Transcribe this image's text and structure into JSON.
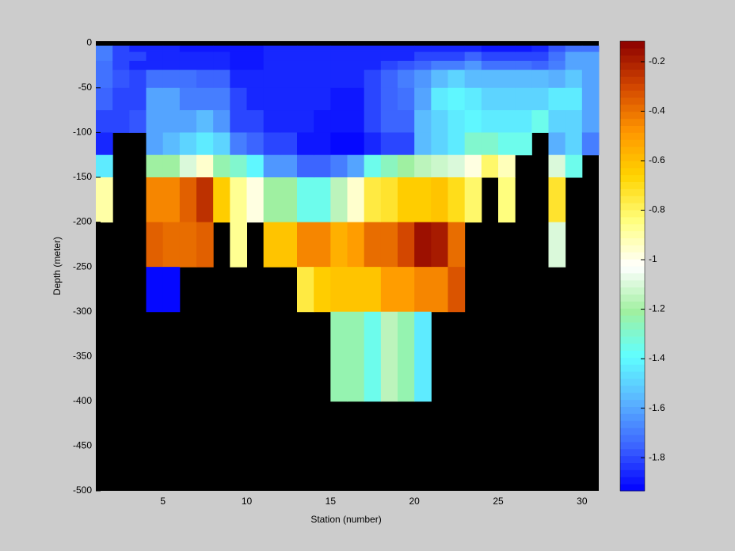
{
  "chart_data": {
    "type": "pcolor",
    "xlabel": "Station (number)",
    "ylabel": "Depth (meter)",
    "xlim": [
      1,
      31
    ],
    "xticks": [
      5,
      10,
      15,
      20,
      25,
      30
    ],
    "ylim": [
      -500,
      2
    ],
    "yticks": [
      0,
      -50,
      -100,
      -150,
      -200,
      -250,
      -300,
      -350,
      -400,
      -450,
      -500
    ],
    "x_edges": [
      1,
      2,
      3,
      4,
      5,
      6,
      7,
      8,
      9,
      10,
      11,
      12,
      13,
      14,
      15,
      16,
      17,
      18,
      19,
      20,
      21,
      22,
      23,
      24,
      25,
      26,
      27,
      28,
      29,
      30,
      31
    ],
    "y_edges": [
      -3,
      -10,
      -20,
      -30,
      -50,
      -75,
      -100,
      -125,
      -150,
      -200,
      -250,
      -300,
      -400
    ],
    "values": [
      [
        -1.7,
        -1.7,
        -1.72,
        -1.72,
        -1.75,
        -1.8,
        -1.85,
        -1.45,
        -0.9,
        null,
        null,
        null
      ],
      [
        -1.8,
        -1.8,
        -1.8,
        -1.78,
        -1.8,
        -1.8,
        null,
        null,
        null,
        null,
        null,
        null
      ],
      [
        -1.85,
        -1.82,
        -1.85,
        -1.8,
        -1.8,
        -1.78,
        null,
        null,
        null,
        null,
        null,
        null
      ],
      [
        -1.85,
        -1.85,
        -1.85,
        -1.72,
        -1.62,
        -1.62,
        -1.62,
        -1.2,
        -0.45,
        -0.35,
        -1.92,
        null
      ],
      [
        -1.85,
        -1.85,
        -1.85,
        -1.72,
        -1.62,
        -1.6,
        -1.55,
        -1.2,
        -0.45,
        -0.4,
        -1.92,
        null
      ],
      [
        -1.88,
        -1.85,
        -1.85,
        -1.72,
        -1.68,
        -1.6,
        -1.5,
        -1.1,
        -0.35,
        -0.4,
        null,
        null
      ],
      [
        -1.88,
        -1.85,
        -1.85,
        -1.75,
        -1.68,
        -1.55,
        -1.45,
        -0.95,
        -0.25,
        -0.35,
        null,
        null
      ],
      [
        -1.88,
        -1.85,
        -1.85,
        -1.75,
        -1.7,
        -1.65,
        -1.5,
        -1.25,
        -0.65,
        null,
        null,
        null
      ],
      [
        -1.88,
        -1.88,
        -1.88,
        -1.85,
        -1.82,
        -1.82,
        -1.7,
        -1.3,
        -0.88,
        -0.88,
        null,
        null
      ],
      [
        -1.88,
        -1.88,
        -1.88,
        -1.85,
        -1.85,
        -1.82,
        -1.75,
        -1.4,
        -0.98,
        null,
        null,
        null
      ],
      [
        -1.85,
        -1.85,
        -1.85,
        -1.85,
        -1.85,
        -1.85,
        -1.82,
        -1.65,
        -1.22,
        -0.6,
        null,
        null
      ],
      [
        -1.85,
        -1.85,
        -1.85,
        -1.85,
        -1.85,
        -1.85,
        -1.82,
        -1.65,
        -1.22,
        -0.6,
        null,
        null
      ],
      [
        -1.85,
        -1.85,
        -1.85,
        -1.85,
        -1.85,
        -1.85,
        -1.88,
        -1.75,
        -1.35,
        -0.45,
        -0.75,
        null
      ],
      [
        -1.85,
        -1.85,
        -1.85,
        -1.85,
        -1.85,
        -1.88,
        -1.9,
        -1.75,
        -1.35,
        -0.45,
        -0.65,
        null
      ],
      [
        -1.85,
        -1.85,
        -1.85,
        -1.85,
        -1.9,
        -1.9,
        -1.93,
        -1.68,
        -1.15,
        -0.55,
        -0.6,
        -1.25
      ],
      [
        -1.85,
        -1.85,
        -1.85,
        -1.85,
        -1.9,
        -1.9,
        -1.93,
        -1.62,
        -0.95,
        -0.5,
        -0.6,
        -1.25
      ],
      [
        -1.85,
        -1.85,
        -1.85,
        -1.8,
        -1.82,
        -1.82,
        -1.85,
        -1.35,
        -0.75,
        -0.4,
        -0.6,
        -1.35
      ],
      [
        -1.85,
        -1.85,
        -1.8,
        -1.75,
        -1.75,
        -1.75,
        -1.8,
        -1.28,
        -0.72,
        -0.4,
        -0.5,
        -1.15
      ],
      [
        -1.85,
        -1.85,
        -1.78,
        -1.7,
        -1.72,
        -1.75,
        -1.8,
        -1.2,
        -0.65,
        -0.3,
        -0.5,
        -1.25
      ],
      [
        -1.85,
        -1.82,
        -1.75,
        -1.65,
        -1.6,
        -1.55,
        -1.55,
        -1.15,
        -0.65,
        -0.15,
        -0.45,
        -1.45
      ],
      [
        -1.85,
        -1.8,
        -1.7,
        -1.55,
        -1.45,
        -1.48,
        -1.48,
        -1.12,
        -0.6,
        -0.18,
        -0.45,
        null
      ],
      [
        -1.85,
        -1.8,
        -1.7,
        -1.5,
        -1.42,
        -1.45,
        -1.45,
        -1.1,
        -0.7,
        -0.4,
        -0.32,
        null
      ],
      [
        -1.85,
        -1.75,
        -1.65,
        -1.55,
        -1.45,
        -1.4,
        -1.3,
        -0.98,
        -0.82,
        null,
        null,
        null
      ],
      [
        -1.88,
        -1.8,
        -1.72,
        -1.55,
        -1.5,
        -1.45,
        -1.3,
        -0.8,
        null,
        null,
        null,
        null
      ],
      [
        -1.88,
        -1.8,
        -1.72,
        -1.55,
        -1.5,
        -1.45,
        -1.35,
        -0.92,
        -0.85,
        null,
        null,
        null
      ],
      [
        -1.88,
        -1.8,
        -1.72,
        -1.55,
        -1.48,
        -1.45,
        -1.35,
        null,
        null,
        null,
        null,
        null
      ],
      [
        -1.85,
        -1.8,
        -1.75,
        -1.55,
        -1.48,
        -1.35,
        null,
        null,
        null,
        null,
        null,
        null
      ],
      [
        -1.78,
        -1.72,
        -1.68,
        -1.58,
        -1.45,
        -1.5,
        -1.58,
        -1.1,
        -0.72,
        -1.1,
        null,
        null
      ],
      [
        -1.72,
        -1.6,
        -1.6,
        -1.52,
        -1.45,
        -1.5,
        -1.5,
        -1.35,
        null,
        null,
        null,
        null
      ],
      [
        -1.72,
        -1.62,
        -1.62,
        -1.6,
        -1.6,
        -1.62,
        -1.68,
        null,
        null,
        null,
        null,
        null
      ]
    ],
    "clim": [
      -1.934,
      -0.117
    ],
    "cticks": [
      -0.2,
      -0.4,
      -0.6,
      -0.8,
      -1,
      -1.2,
      -1.4,
      -1.6,
      -1.8
    ],
    "colormap": [
      "#0000ff",
      "#3c64ff",
      "#5ab4ff",
      "#60ffff",
      "#a0f0a0",
      "#ffffff",
      "#ffff80",
      "#ffd400",
      "#ff9600",
      "#d24600",
      "#8c0000"
    ],
    "colormap_levels": 64,
    "nan_color": "#000000"
  }
}
